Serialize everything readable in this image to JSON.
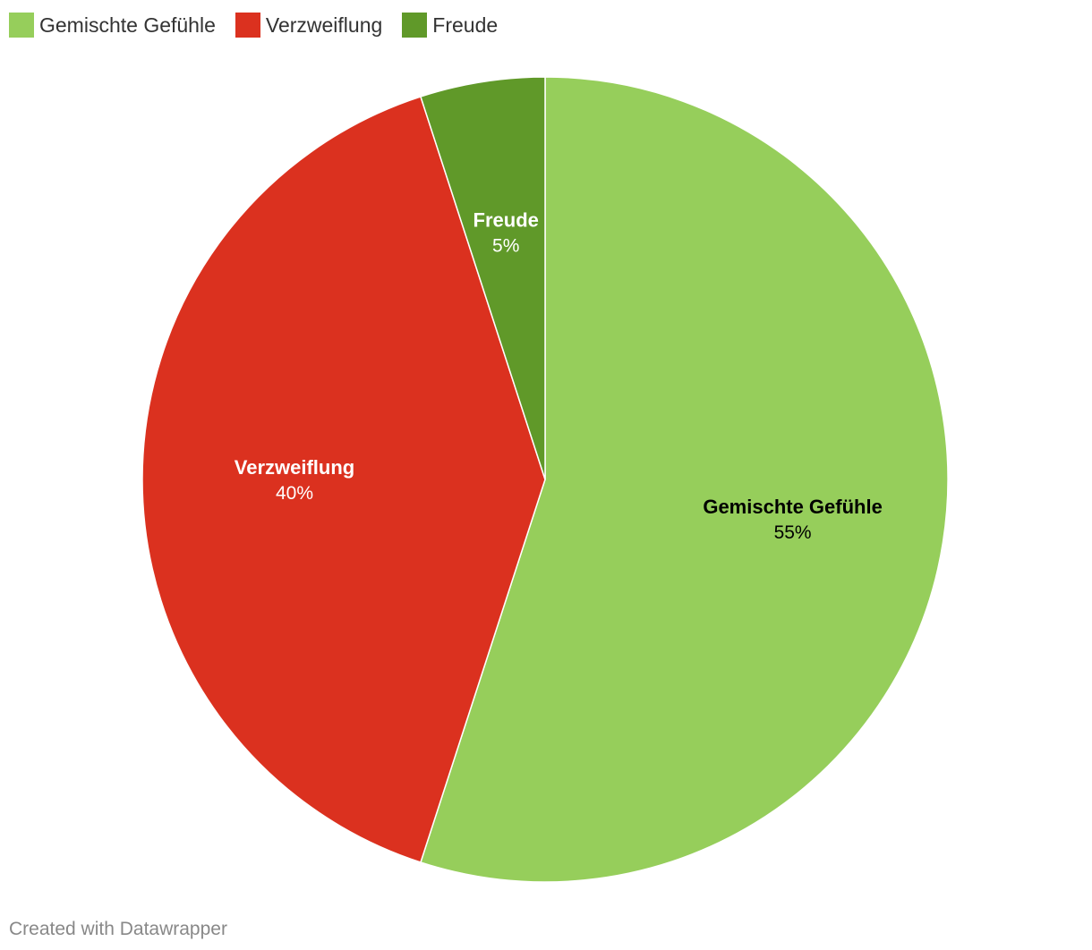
{
  "chart_data": {
    "type": "pie",
    "slices": [
      {
        "label": "Gemischte Gefühle",
        "value": 55,
        "value_label": "55%",
        "color": "#96ce5b",
        "label_color": "#000000"
      },
      {
        "label": "Verzweiflung",
        "value": 40,
        "value_label": "40%",
        "color": "#db311f",
        "label_color": "#ffffff"
      },
      {
        "label": "Freude",
        "value": 5,
        "value_label": "5%",
        "color": "#609929",
        "label_color": "#ffffff"
      }
    ],
    "start_angle": "12 o'clock",
    "direction": "clockwise",
    "legend_position": "top-left"
  },
  "legend": {
    "items": [
      {
        "label": "Gemischte Gefühle",
        "color": "#96ce5b"
      },
      {
        "label": "Verzweiflung",
        "color": "#db311f"
      },
      {
        "label": "Freude",
        "color": "#609929"
      }
    ]
  },
  "footer": {
    "credit": "Created with Datawrapper"
  }
}
